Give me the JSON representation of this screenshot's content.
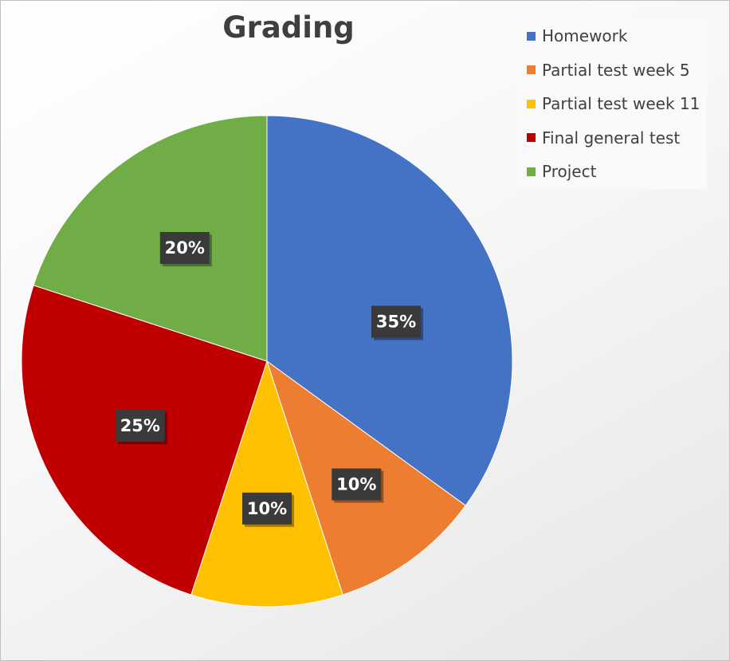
{
  "chart_data": {
    "type": "pie",
    "title": "Grading",
    "categories": [
      "Homework",
      "Partial test week 5",
      "Partial test week 11",
      "Final general test",
      "Project"
    ],
    "values": [
      35,
      10,
      10,
      25,
      20
    ],
    "data_labels": [
      "35%",
      "10%",
      "10%",
      "25%",
      "20%"
    ],
    "colors": [
      "#4472C4",
      "#ED7D31",
      "#FFC000",
      "#C00000",
      "#70AD47"
    ],
    "legend_position": "top-right",
    "start_angle_deg": 0,
    "direction": "clockwise"
  }
}
